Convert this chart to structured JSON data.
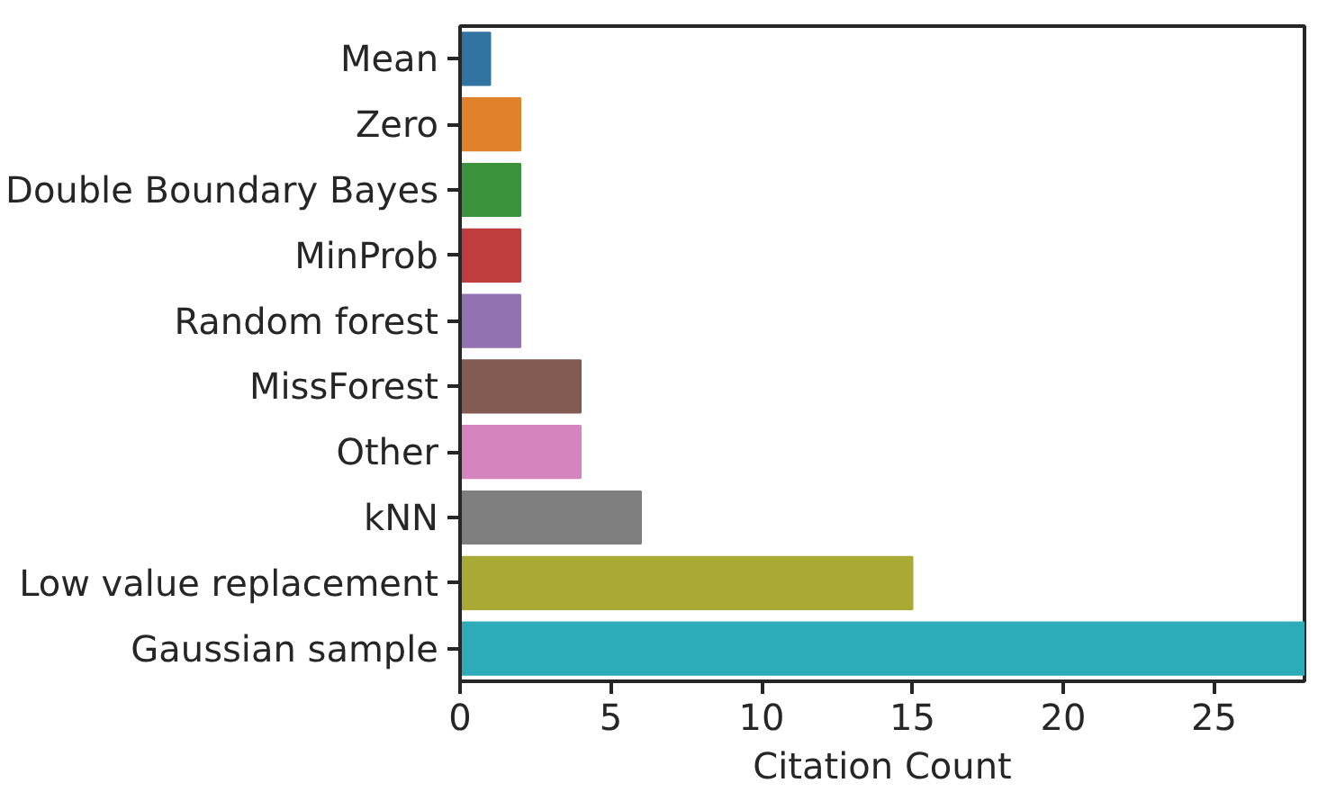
{
  "chart_data": {
    "type": "bar",
    "orientation": "horizontal",
    "xlabel": "Citation Count",
    "categories": [
      "Mean",
      "Zero",
      "Double Boundary Bayes",
      "MinProb",
      "Random forest",
      "MissForest",
      "Other",
      "kNN",
      "Low value replacement",
      "Gaussian sample"
    ],
    "values": [
      1,
      2,
      2,
      2,
      2,
      4,
      4,
      6,
      15,
      28
    ],
    "colors": [
      "#3274a1",
      "#e1812c",
      "#3a923a",
      "#c03d3e",
      "#9372b2",
      "#845b53",
      "#d684bd",
      "#7f7f7f",
      "#a9aa35",
      "#2eabb8"
    ],
    "xlim": [
      0,
      28
    ],
    "xticks": [
      0,
      5,
      10,
      15,
      20,
      25
    ],
    "grid": false
  }
}
